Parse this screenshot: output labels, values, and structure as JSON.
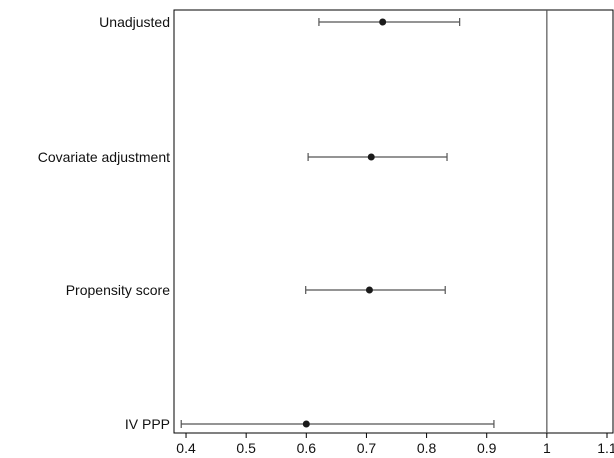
{
  "chart_data": {
    "type": "scatter",
    "subtype": "forest-plot",
    "title": "",
    "xlabel": "",
    "ylabel": "",
    "xlim": [
      0.38,
      1.11
    ],
    "xticks": [
      0.4,
      0.5,
      0.6,
      0.7,
      0.8,
      0.9,
      1,
      1.1
    ],
    "xtick_labels": [
      "0.4",
      "0.5",
      "0.6",
      "0.7",
      "0.8",
      "0.9",
      "1",
      "1.1"
    ],
    "reference_line": 1,
    "grid": false,
    "legend": "none",
    "categories": [
      "Unadjusted",
      "Covariate adjustment",
      "Propensity score",
      "IV PPP"
    ],
    "estimates": [
      0.727,
      0.708,
      0.705,
      0.6
    ],
    "ci_lower": [
      0.621,
      0.603,
      0.599,
      0.392
    ],
    "ci_upper": [
      0.855,
      0.834,
      0.831,
      0.912
    ],
    "colors": {
      "marker": "#1a1a1a",
      "line": "#555555",
      "axis": "#000000"
    }
  }
}
